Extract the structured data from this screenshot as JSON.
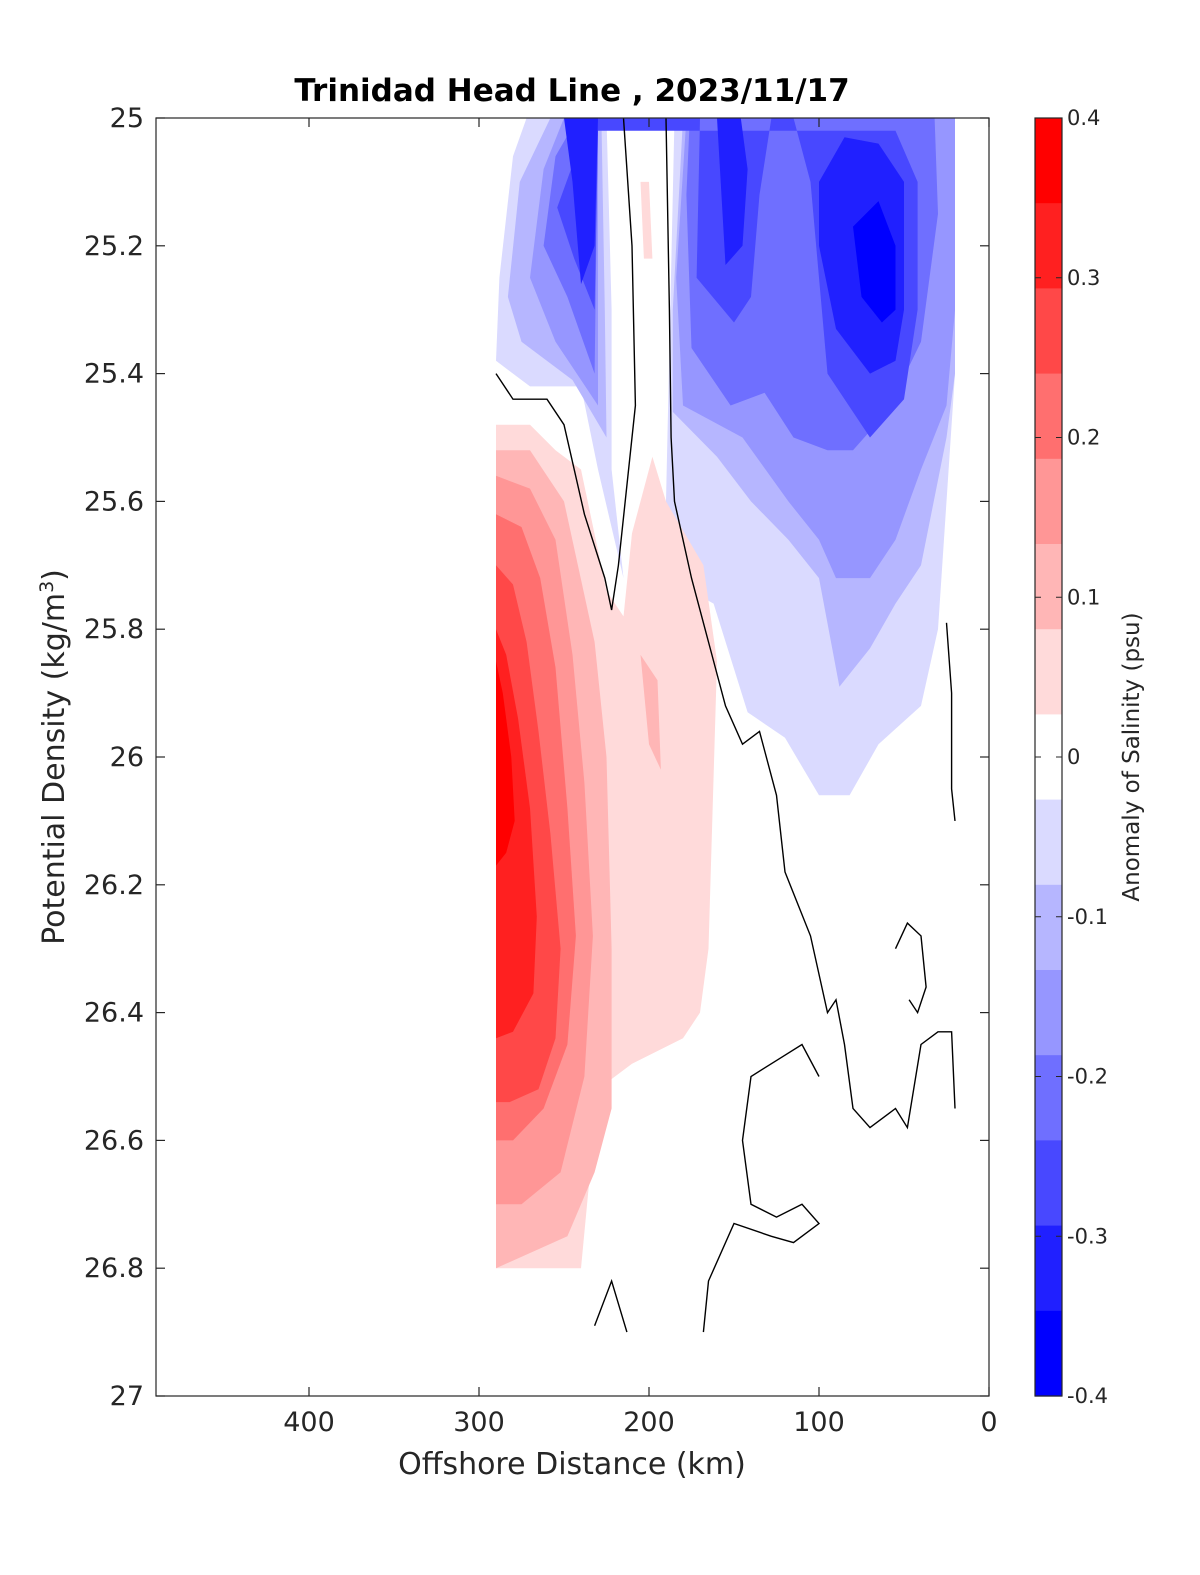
{
  "chart_data": {
    "type": "contour",
    "title": "Trinidad Head Line , 2023/11/17",
    "xlabel": "Offshore Distance (km)",
    "ylabel_text": "Potential Density (kg/m",
    "ylabel_sup": "3",
    "ylabel_close": ")",
    "xlim": [
      490,
      0
    ],
    "x_reversed": true,
    "ylim": [
      25,
      27
    ],
    "y_reversed": true,
    "xticks": [
      400,
      300,
      200,
      100,
      0
    ],
    "yticks": [
      25,
      25.2,
      25.4,
      25.6,
      25.8,
      26,
      26.2,
      26.4,
      26.6,
      26.8,
      27
    ],
    "ytick_labels": [
      "25",
      "25.2",
      "25.4",
      "25.6",
      "25.8",
      "26",
      "26.2",
      "26.4",
      "26.6",
      "26.8",
      "27"
    ],
    "colorbar": {
      "label": "Anomaly of Salinity (psu)",
      "range": [
        -0.4,
        0.4
      ],
      "step": 0.05,
      "tick_values": [
        0.4,
        0.3,
        0.2,
        0.1,
        0,
        -0.1,
        -0.2,
        -0.3,
        -0.4
      ],
      "tick_labels": [
        "0.4",
        "0.3",
        "0.2",
        "0.1",
        "0",
        "-0.1",
        "-0.2",
        "-0.3",
        "-0.4"
      ],
      "colors_top_to_bottom": [
        "#ff0000",
        "#ff2020",
        "#ff4848",
        "#ff6f6f",
        "#ff9696",
        "#ffb6b6",
        "#ffdada",
        "#ffffff",
        "#dadaff",
        "#b6b6ff",
        "#9696ff",
        "#6f6fff",
        "#4848ff",
        "#2020ff",
        "#0000ff"
      ]
    },
    "data_extent": {
      "x": [
        290,
        20
      ],
      "y": [
        25,
        26.8
      ]
    },
    "fills": [
      {
        "level": -0.05,
        "color": "#dadaff",
        "points": [
          [
            272,
            25
          ],
          [
            185,
            25
          ],
          [
            190,
            25.6
          ],
          [
            182,
            25.73
          ],
          [
            162,
            25.76
          ],
          [
            142,
            25.93
          ],
          [
            120,
            25.97
          ],
          [
            100,
            26.06
          ],
          [
            82,
            26.06
          ],
          [
            65,
            25.98
          ],
          [
            40,
            25.92
          ],
          [
            30,
            25.8
          ],
          [
            25,
            25.6
          ],
          [
            20,
            25.4
          ],
          [
            20,
            25
          ],
          [
            225,
            25
          ],
          [
            222,
            25.3
          ],
          [
            222,
            25.55
          ],
          [
            215,
            25.72
          ],
          [
            230,
            25.55
          ],
          [
            240,
            25.42
          ],
          [
            270,
            25.42
          ],
          [
            290,
            25.38
          ],
          [
            288,
            25.25
          ],
          [
            280,
            25.06
          ]
        ]
      },
      {
        "level": -0.1,
        "color": "#b6b6ff",
        "points": [
          [
            258,
            25
          ],
          [
            180,
            25
          ],
          [
            186,
            25.3
          ],
          [
            186,
            25.46
          ],
          [
            160,
            25.53
          ],
          [
            140,
            25.6
          ],
          [
            118,
            25.66
          ],
          [
            100,
            25.72
          ],
          [
            88,
            25.89
          ],
          [
            70,
            25.83
          ],
          [
            55,
            25.76
          ],
          [
            40,
            25.7
          ],
          [
            25,
            25.5
          ],
          [
            20,
            25.4
          ],
          [
            20,
            25
          ],
          [
            228,
            25
          ],
          [
            226,
            25.3
          ],
          [
            225,
            25.5
          ],
          [
            245,
            25.41
          ],
          [
            275,
            25.35
          ],
          [
            283,
            25.28
          ],
          [
            276,
            25.1
          ]
        ]
      },
      {
        "level": -0.15,
        "color": "#9696ff",
        "points": [
          [
            250,
            25
          ],
          [
            178,
            25
          ],
          [
            184,
            25.25
          ],
          [
            180,
            25.45
          ],
          [
            145,
            25.5
          ],
          [
            118,
            25.6
          ],
          [
            100,
            25.66
          ],
          [
            90,
            25.72
          ],
          [
            70,
            25.72
          ],
          [
            55,
            25.66
          ],
          [
            40,
            25.55
          ],
          [
            25,
            25.45
          ],
          [
            20,
            25.3
          ],
          [
            20,
            25
          ],
          [
            230,
            25
          ],
          [
            230,
            25.45
          ],
          [
            255,
            25.35
          ],
          [
            270,
            25.25
          ],
          [
            262,
            25.08
          ]
        ]
      },
      {
        "level": -0.2,
        "color": "#6f6fff",
        "points": [
          [
            242,
            25
          ],
          [
            176,
            25
          ],
          [
            178,
            25.12
          ],
          [
            175,
            25.36
          ],
          [
            152,
            25.45
          ],
          [
            132,
            25.43
          ],
          [
            115,
            25.5
          ],
          [
            95,
            25.52
          ],
          [
            80,
            25.52
          ],
          [
            60,
            25.46
          ],
          [
            40,
            25.35
          ],
          [
            30,
            25.15
          ],
          [
            32,
            25
          ],
          [
            230,
            25
          ],
          [
            232,
            25.4
          ],
          [
            248,
            25.28
          ],
          [
            262,
            25.2
          ],
          [
            255,
            25.06
          ]
        ]
      },
      {
        "level": -0.25,
        "color": "#4848ff",
        "points": [
          [
            235,
            25
          ],
          [
            170,
            25
          ],
          [
            172,
            25.25
          ],
          [
            150,
            25.32
          ],
          [
            140,
            25.28
          ],
          [
            135,
            25.12
          ],
          [
            128,
            25
          ],
          [
            115,
            25
          ],
          [
            105,
            25.1
          ],
          [
            100,
            25.25
          ],
          [
            95,
            25.4
          ],
          [
            70,
            25.5
          ],
          [
            50,
            25.44
          ],
          [
            42,
            25.3
          ],
          [
            42,
            25.1
          ],
          [
            55,
            25.02
          ],
          [
            230,
            25.02
          ],
          [
            232,
            25.3
          ],
          [
            244,
            25.22
          ],
          [
            254,
            25.14
          ]
        ]
      },
      {
        "level": -0.3,
        "color": "#2020ff",
        "points": [
          [
            250,
            25
          ],
          [
            230,
            25
          ],
          [
            232,
            25.2
          ],
          [
            240,
            25.26
          ],
          [
            245,
            25.1
          ]
        ]
      },
      {
        "level": -0.3,
        "color": "#2020ff",
        "points": [
          [
            170,
            25
          ],
          [
            160,
            25
          ],
          [
            155,
            25.23
          ],
          [
            145,
            25.2
          ],
          [
            142,
            25.08
          ],
          [
            146,
            25
          ]
        ]
      },
      {
        "level": -0.3,
        "color": "#2020ff",
        "points": [
          [
            100,
            25.1
          ],
          [
            85,
            25.03
          ],
          [
            65,
            25.04
          ],
          [
            50,
            25.1
          ],
          [
            50,
            25.3
          ],
          [
            55,
            25.38
          ],
          [
            70,
            25.4
          ],
          [
            90,
            25.33
          ],
          [
            100,
            25.2
          ]
        ]
      },
      {
        "level": -0.35,
        "color": "#0000ff",
        "points": [
          [
            80,
            25.17
          ],
          [
            65,
            25.13
          ],
          [
            55,
            25.2
          ],
          [
            55,
            25.3
          ],
          [
            63,
            25.32
          ],
          [
            75,
            25.28
          ]
        ]
      },
      {
        "level": 0.05,
        "color": "#ffdada",
        "points": [
          [
            290,
            25.48
          ],
          [
            270,
            25.48
          ],
          [
            255,
            25.52
          ],
          [
            240,
            25.55
          ],
          [
            225,
            25.74
          ],
          [
            215,
            25.78
          ],
          [
            210,
            25.65
          ],
          [
            198,
            25.53
          ],
          [
            190,
            25.6
          ],
          [
            168,
            25.7
          ],
          [
            160,
            25.85
          ],
          [
            165,
            26.3
          ],
          [
            170,
            26.4
          ],
          [
            180,
            26.44
          ],
          [
            210,
            26.48
          ],
          [
            230,
            26.52
          ],
          [
            240,
            26.8
          ],
          [
            290,
            26.8
          ]
        ]
      },
      {
        "level": 0.05,
        "color": "#ffdada",
        "points": [
          [
            205,
            25.1
          ],
          [
            200,
            25.1
          ],
          [
            198,
            25.22
          ],
          [
            203,
            25.22
          ]
        ]
      },
      {
        "level": 0.1,
        "color": "#ffb6b6",
        "points": [
          [
            290,
            25.52
          ],
          [
            270,
            25.52
          ],
          [
            250,
            25.6
          ],
          [
            232,
            25.82
          ],
          [
            225,
            26
          ],
          [
            222,
            26.3
          ],
          [
            222,
            26.55
          ],
          [
            232,
            26.65
          ],
          [
            248,
            26.75
          ],
          [
            290,
            26.8
          ]
        ]
      },
      {
        "level": 0.1,
        "color": "#ffb6b6",
        "points": [
          [
            205,
            25.84
          ],
          [
            195,
            25.88
          ],
          [
            193,
            26.02
          ],
          [
            200,
            25.98
          ]
        ]
      },
      {
        "level": 0.15,
        "color": "#ff9696",
        "points": [
          [
            290,
            25.56
          ],
          [
            270,
            25.58
          ],
          [
            255,
            25.66
          ],
          [
            245,
            25.84
          ],
          [
            238,
            26.04
          ],
          [
            233,
            26.28
          ],
          [
            238,
            26.5
          ],
          [
            252,
            26.65
          ],
          [
            275,
            26.7
          ],
          [
            290,
            26.7
          ]
        ]
      },
      {
        "level": 0.2,
        "color": "#ff6f6f",
        "points": [
          [
            290,
            25.62
          ],
          [
            275,
            25.64
          ],
          [
            264,
            25.72
          ],
          [
            255,
            25.86
          ],
          [
            248,
            26.08
          ],
          [
            243,
            26.28
          ],
          [
            248,
            26.45
          ],
          [
            262,
            26.55
          ],
          [
            280,
            26.6
          ],
          [
            290,
            26.6
          ]
        ]
      },
      {
        "level": 0.25,
        "color": "#ff4848",
        "points": [
          [
            290,
            25.7
          ],
          [
            280,
            25.73
          ],
          [
            272,
            25.82
          ],
          [
            265,
            25.96
          ],
          [
            258,
            26.12
          ],
          [
            252,
            26.3
          ],
          [
            255,
            26.44
          ],
          [
            265,
            26.52
          ],
          [
            282,
            26.54
          ],
          [
            290,
            26.54
          ]
        ]
      },
      {
        "level": 0.3,
        "color": "#ff2020",
        "points": [
          [
            290,
            25.8
          ],
          [
            284,
            25.84
          ],
          [
            277,
            25.94
          ],
          [
            270,
            26.08
          ],
          [
            266,
            26.25
          ],
          [
            268,
            26.37
          ],
          [
            280,
            26.43
          ],
          [
            290,
            26.44
          ]
        ]
      },
      {
        "level": 0.35,
        "color": "#ff0000",
        "points": [
          [
            290,
            25.85
          ],
          [
            286,
            25.9
          ],
          [
            281,
            26
          ],
          [
            279,
            26.1
          ],
          [
            284,
            26.15
          ],
          [
            290,
            26.17
          ]
        ]
      }
    ],
    "zero_contours": [
      [
        [
          290,
          25.4
        ],
        [
          280,
          25.44
        ],
        [
          260,
          25.44
        ],
        [
          250,
          25.48
        ],
        [
          238,
          25.62
        ],
        [
          226,
          25.72
        ],
        [
          222,
          25.77
        ],
        [
          218,
          25.7
        ],
        [
          208,
          25.45
        ],
        [
          210,
          25.2
        ],
        [
          215,
          25
        ]
      ],
      [
        [
          190,
          25
        ],
        [
          188,
          25.3
        ],
        [
          187,
          25.5
        ],
        [
          185,
          25.6
        ],
        [
          175,
          25.72
        ],
        [
          165,
          25.82
        ],
        [
          155,
          25.92
        ],
        [
          145,
          25.98
        ],
        [
          135,
          25.96
        ],
        [
          125,
          26.06
        ],
        [
          120,
          26.18
        ],
        [
          105,
          26.28
        ],
        [
          95,
          26.4
        ],
        [
          90,
          26.38
        ],
        [
          85,
          26.45
        ],
        [
          80,
          26.55
        ],
        [
          70,
          26.58
        ],
        [
          55,
          26.55
        ],
        [
          48,
          26.58
        ],
        [
          40,
          26.45
        ],
        [
          30,
          26.43
        ],
        [
          22,
          26.43
        ],
        [
          20,
          26.55
        ]
      ],
      [
        [
          55,
          26.3
        ],
        [
          48,
          26.26
        ],
        [
          40,
          26.28
        ],
        [
          37,
          26.36
        ],
        [
          42,
          26.4
        ],
        [
          47,
          26.38
        ]
      ],
      [
        [
          100,
          26.5
        ],
        [
          110,
          26.45
        ],
        [
          122,
          26.47
        ],
        [
          140,
          26.5
        ],
        [
          145,
          26.6
        ],
        [
          140,
          26.7
        ],
        [
          125,
          26.72
        ],
        [
          110,
          26.7
        ],
        [
          100,
          26.73
        ],
        [
          115,
          26.76
        ],
        [
          128,
          26.75
        ],
        [
          150,
          26.73
        ],
        [
          165,
          26.82
        ],
        [
          168,
          26.9
        ]
      ],
      [
        [
          232,
          26.89
        ],
        [
          222,
          26.82
        ],
        [
          213,
          26.9
        ]
      ],
      [
        [
          25,
          25.79
        ],
        [
          22,
          25.9
        ],
        [
          22,
          26.05
        ],
        [
          20,
          26.1
        ]
      ]
    ]
  }
}
